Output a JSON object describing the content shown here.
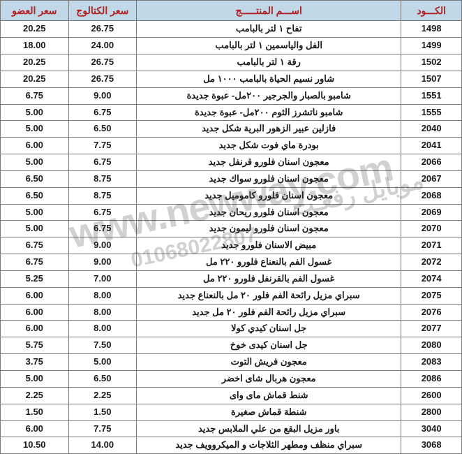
{
  "table": {
    "headers": {
      "code": "الكـــود",
      "name": "اســـم المنتـــــج",
      "catalog_price": "سعر الكتالوج",
      "member_price": "سعر العضو"
    },
    "rows": [
      {
        "code": "1498",
        "name": "تفاح ١ لتر بالبامب",
        "catalog": "26.75",
        "member": "20.25"
      },
      {
        "code": "1499",
        "name": "الفل والياسمين ١ لتر بالبامب",
        "catalog": "24.00",
        "member": "18.00"
      },
      {
        "code": "1502",
        "name": "رقة ١ لتر بالبامب",
        "catalog": "26.75",
        "member": "20.25"
      },
      {
        "code": "1507",
        "name": "شاور نسيم الحياة بالبامب ١٠٠٠ مل",
        "catalog": "26.75",
        "member": "20.25"
      },
      {
        "code": "1551",
        "name": "شامبو بالصبار والجرجير ٢٠٠مل- عبوة جديدة",
        "catalog": "9.00",
        "member": "6.75"
      },
      {
        "code": "1555",
        "name": "شامبو ناتشرز الثوم ٢٠٠مل- عبوة جديدة",
        "catalog": "6.75",
        "member": "5.00"
      },
      {
        "code": "2040",
        "name": "فازلين عبير الزهور البرية شكل جديد",
        "catalog": "6.50",
        "member": "5.00"
      },
      {
        "code": "2041",
        "name": "بودرة ماي فوت شكل جديد",
        "catalog": "7.75",
        "member": "6.00"
      },
      {
        "code": "2066",
        "name": "معجون اسنان فلورو قرنفل جديد",
        "catalog": "6.75",
        "member": "5.00"
      },
      {
        "code": "2067",
        "name": "معجون اسنان فلورو سواك جديد",
        "catalog": "8.75",
        "member": "6.50"
      },
      {
        "code": "2068",
        "name": "معجون اسنان فلورو كاموميل جديد",
        "catalog": "8.75",
        "member": "6.50"
      },
      {
        "code": "2069",
        "name": "معجون اسنان فلورو ريحان جديد",
        "catalog": "6.75",
        "member": "5.00"
      },
      {
        "code": "2070",
        "name": "معجون اسنان فلورو ليمون جديد",
        "catalog": "6.75",
        "member": "5.00"
      },
      {
        "code": "2071",
        "name": "مبيض الاسنان فلورو جديد",
        "catalog": "9.00",
        "member": "6.75"
      },
      {
        "code": "2072",
        "name": "غسول الفم بالنعناع فلورو ٢٢٠ مل",
        "catalog": "9.00",
        "member": "6.75"
      },
      {
        "code": "2074",
        "name": "غسول الفم بالقرنفل فلورو ٢٢٠ مل",
        "catalog": "7.00",
        "member": "5.25"
      },
      {
        "code": "2075",
        "name": "سبراي مزيل رائحة الفم فلور ٢٠ مل بالنعناع جديد",
        "catalog": "8.00",
        "member": "6.00"
      },
      {
        "code": "2076",
        "name": "سبراي مزيل رائحة الفم فلور ٢٠ مل جديد",
        "catalog": "8.00",
        "member": "6.00"
      },
      {
        "code": "2077",
        "name": "جل اسنان كيدي كولا",
        "catalog": "8.00",
        "member": "6.00"
      },
      {
        "code": "2080",
        "name": "جل اسنان كيدى خوخ",
        "catalog": "7.50",
        "member": "5.75"
      },
      {
        "code": "2083",
        "name": "معجون فريش التوت",
        "catalog": "5.00",
        "member": "3.75"
      },
      {
        "code": "2086",
        "name": "معجون هربال شاى اخضر",
        "catalog": "6.50",
        "member": "5.00"
      },
      {
        "code": "2600",
        "name": "شنط قماش ماى واى",
        "catalog": "2.25",
        "member": "2.25"
      },
      {
        "code": "2800",
        "name": "شنطة قماش صغيرة",
        "catalog": "1.50",
        "member": "1.50"
      },
      {
        "code": "3040",
        "name": "باور مزيل البقع من علي الملابس جديد",
        "catalog": "7.75",
        "member": "6.00"
      },
      {
        "code": "3068",
        "name": "سبراي منظف ومطهر الثلاجات و الميكروويف جديد",
        "catalog": "14.00",
        "member": "10.50"
      }
    ]
  },
  "watermark": {
    "url": "www.newway.com",
    "arabic": "موبايل رفعـت",
    "phone": "01068022807"
  },
  "styles": {
    "header_bg": "#c0d8e8",
    "header_color": "#b02020",
    "border_color": "#7a7a7a",
    "watermark_opacity": 0.22
  }
}
